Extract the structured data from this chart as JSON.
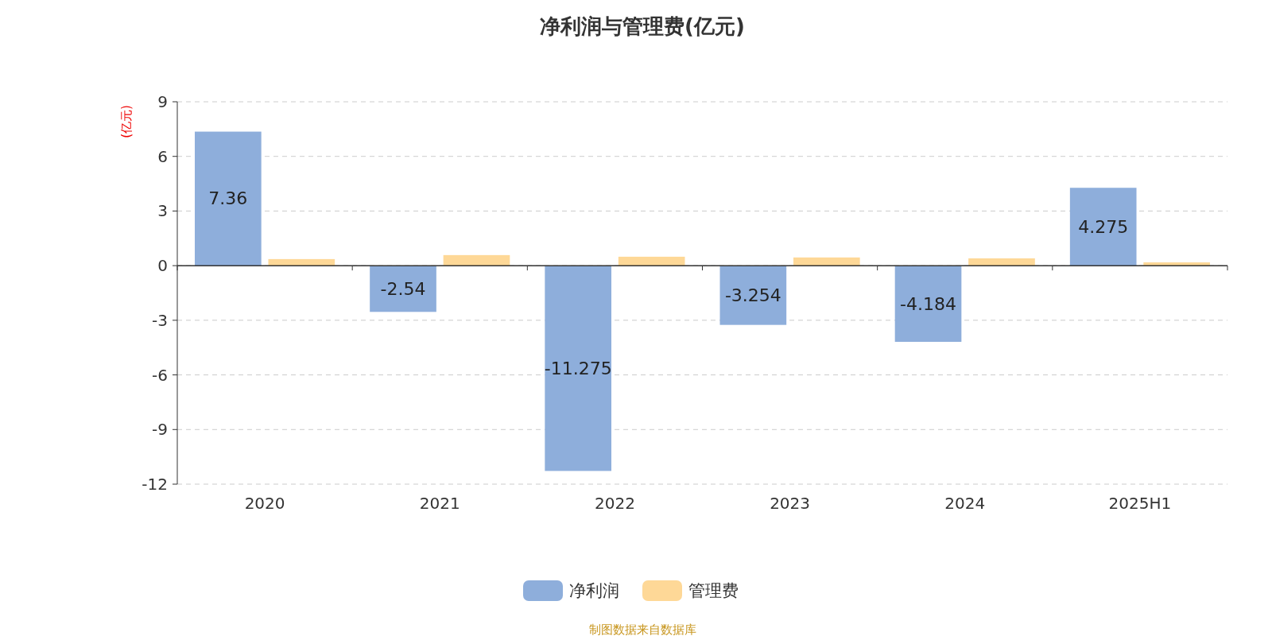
{
  "chart_data": {
    "type": "bar",
    "title": "净利润与管理费(亿元)",
    "ylabel": "(亿元)",
    "categories": [
      "2020",
      "2021",
      "2022",
      "2023",
      "2024",
      "2025H1"
    ],
    "series": [
      {
        "name": "净利润",
        "color": "#8eaedb",
        "values": [
          7.36,
          -2.54,
          -11.275,
          -3.254,
          -4.184,
          4.275
        ],
        "value_labels": [
          "7.36",
          "-2.54",
          "-11.275",
          "-3.254",
          "-4.184",
          "4.275"
        ]
      },
      {
        "name": "管理费",
        "color": "#fed897",
        "values": [
          0.36,
          0.58,
          0.49,
          0.45,
          0.4,
          0.18
        ]
      }
    ],
    "ylim": [
      -12,
      9
    ],
    "yticks": [
      -12,
      -9,
      -6,
      -3,
      0,
      3,
      6,
      9
    ],
    "grid": "y",
    "legend": "bottom",
    "annotations": [
      "制图数据来自数据库"
    ]
  }
}
